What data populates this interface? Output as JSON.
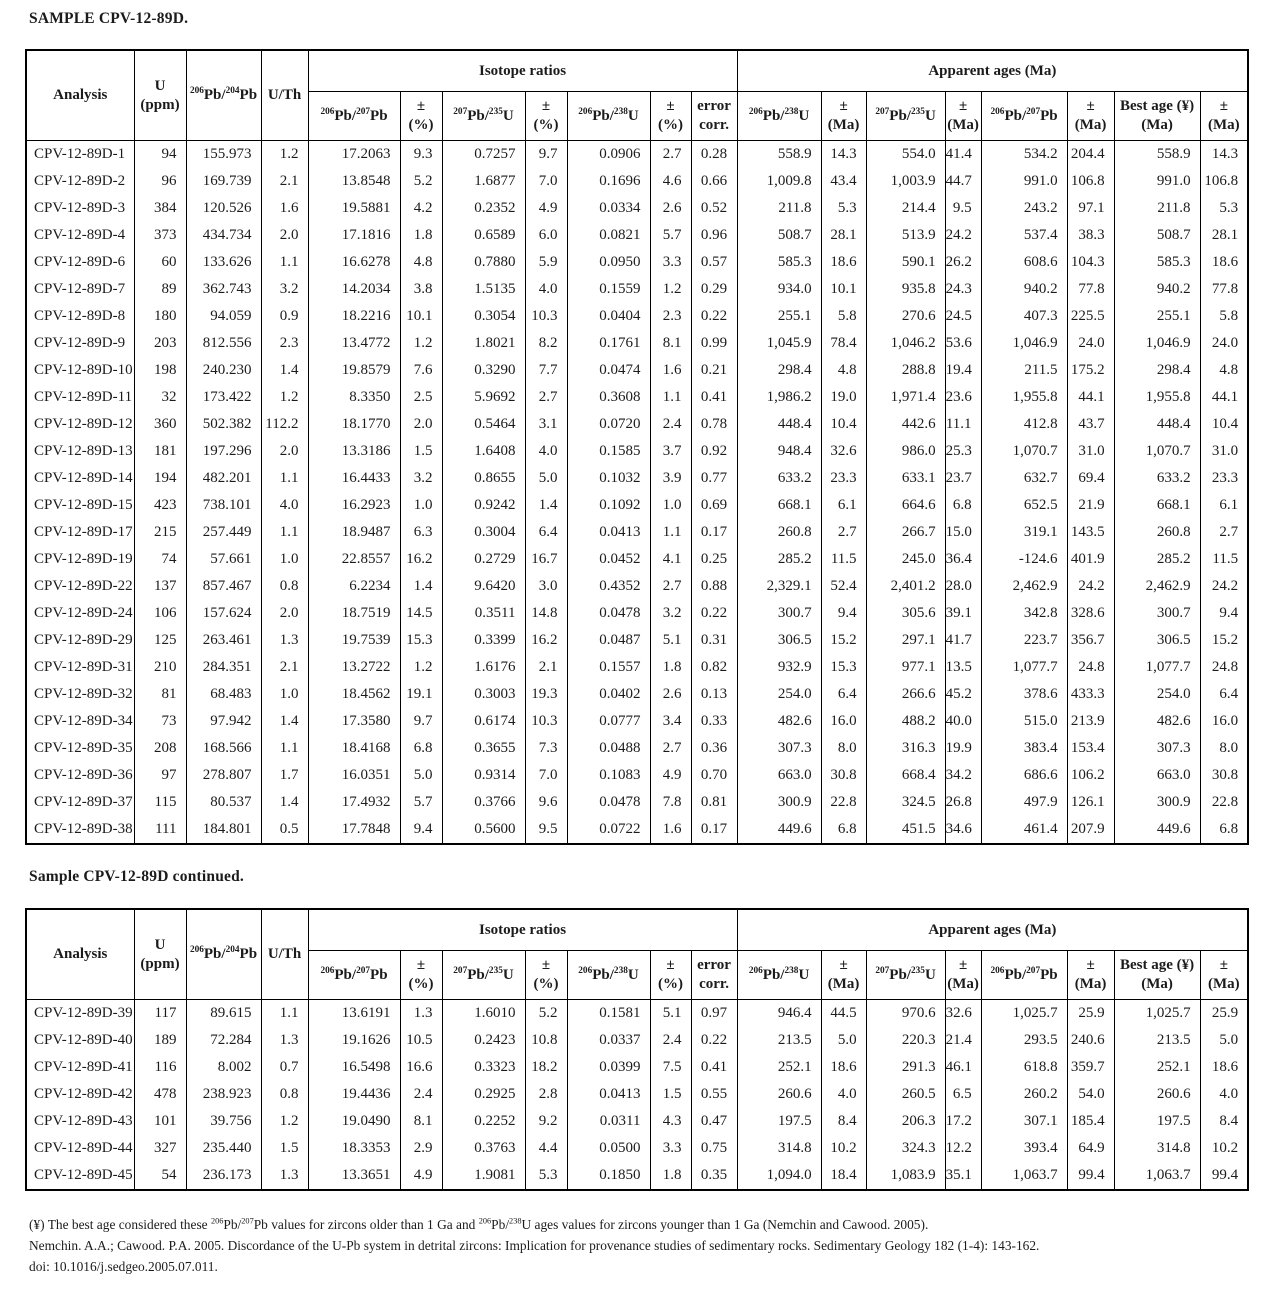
{
  "titles": {
    "sample": "SAMPLE CPV-12-89D.",
    "continued": "Sample CPV-12-89D continued."
  },
  "header": {
    "analysis": "Analysis",
    "u_line1": "U",
    "u_line2": "(ppm)",
    "pb204": "^206^Pb/^204^Pb",
    "uth": "U/Th",
    "isotope_group": "Isotope ratios",
    "ages_group": "Apparent ages (Ma)",
    "r_pb207": "^206^Pb/^207^Pb",
    "r_u235": "^207^Pb/^235^U",
    "r_u238": "^206^Pb/^238^U",
    "pm": "±",
    "pct": "(%)",
    "ma": "(Ma)",
    "err_line1": "error",
    "err_line2": "corr.",
    "a_u238": "^206^Pb/^238^U",
    "a_u235": "^207^Pb/^235^U",
    "a_pb207": "^206^Pb/^207^Pb",
    "best_line1": "Best age (¥)",
    "best_line2": "(Ma)"
  },
  "rows1": [
    [
      "CPV-12-89D-1",
      "94",
      "155.973",
      "1.2",
      "17.2063",
      "9.3",
      "0.7257",
      "9.7",
      "0.0906",
      "2.7",
      "0.28",
      "558.9",
      "14.3",
      "554.0",
      "41.4",
      "534.2",
      "204.4",
      "558.9",
      "14.3"
    ],
    [
      "CPV-12-89D-2",
      "96",
      "169.739",
      "2.1",
      "13.8548",
      "5.2",
      "1.6877",
      "7.0",
      "0.1696",
      "4.6",
      "0.66",
      "1,009.8",
      "43.4",
      "1,003.9",
      "44.7",
      "991.0",
      "106.8",
      "991.0",
      "106.8"
    ],
    [
      "CPV-12-89D-3",
      "384",
      "120.526",
      "1.6",
      "19.5881",
      "4.2",
      "0.2352",
      "4.9",
      "0.0334",
      "2.6",
      "0.52",
      "211.8",
      "5.3",
      "214.4",
      "9.5",
      "243.2",
      "97.1",
      "211.8",
      "5.3"
    ],
    [
      "CPV-12-89D-4",
      "373",
      "434.734",
      "2.0",
      "17.1816",
      "1.8",
      "0.6589",
      "6.0",
      "0.0821",
      "5.7",
      "0.96",
      "508.7",
      "28.1",
      "513.9",
      "24.2",
      "537.4",
      "38.3",
      "508.7",
      "28.1"
    ],
    [
      "CPV-12-89D-6",
      "60",
      "133.626",
      "1.1",
      "16.6278",
      "4.8",
      "0.7880",
      "5.9",
      "0.0950",
      "3.3",
      "0.57",
      "585.3",
      "18.6",
      "590.1",
      "26.2",
      "608.6",
      "104.3",
      "585.3",
      "18.6"
    ],
    [
      "CPV-12-89D-7",
      "89",
      "362.743",
      "3.2",
      "14.2034",
      "3.8",
      "1.5135",
      "4.0",
      "0.1559",
      "1.2",
      "0.29",
      "934.0",
      "10.1",
      "935.8",
      "24.3",
      "940.2",
      "77.8",
      "940.2",
      "77.8"
    ],
    [
      "CPV-12-89D-8",
      "180",
      "94.059",
      "0.9",
      "18.2216",
      "10.1",
      "0.3054",
      "10.3",
      "0.0404",
      "2.3",
      "0.22",
      "255.1",
      "5.8",
      "270.6",
      "24.5",
      "407.3",
      "225.5",
      "255.1",
      "5.8"
    ],
    [
      "CPV-12-89D-9",
      "203",
      "812.556",
      "2.3",
      "13.4772",
      "1.2",
      "1.8021",
      "8.2",
      "0.1761",
      "8.1",
      "0.99",
      "1,045.9",
      "78.4",
      "1,046.2",
      "53.6",
      "1,046.9",
      "24.0",
      "1,046.9",
      "24.0"
    ],
    [
      "CPV-12-89D-10",
      "198",
      "240.230",
      "1.4",
      "19.8579",
      "7.6",
      "0.3290",
      "7.7",
      "0.0474",
      "1.6",
      "0.21",
      "298.4",
      "4.8",
      "288.8",
      "19.4",
      "211.5",
      "175.2",
      "298.4",
      "4.8"
    ],
    [
      "CPV-12-89D-11",
      "32",
      "173.422",
      "1.2",
      "8.3350",
      "2.5",
      "5.9692",
      "2.7",
      "0.3608",
      "1.1",
      "0.41",
      "1,986.2",
      "19.0",
      "1,971.4",
      "23.6",
      "1,955.8",
      "44.1",
      "1,955.8",
      "44.1"
    ],
    [
      "CPV-12-89D-12",
      "360",
      "502.382",
      "112.2",
      "18.1770",
      "2.0",
      "0.5464",
      "3.1",
      "0.0720",
      "2.4",
      "0.78",
      "448.4",
      "10.4",
      "442.6",
      "11.1",
      "412.8",
      "43.7",
      "448.4",
      "10.4"
    ],
    [
      "CPV-12-89D-13",
      "181",
      "197.296",
      "2.0",
      "13.3186",
      "1.5",
      "1.6408",
      "4.0",
      "0.1585",
      "3.7",
      "0.92",
      "948.4",
      "32.6",
      "986.0",
      "25.3",
      "1,070.7",
      "31.0",
      "1,070.7",
      "31.0"
    ],
    [
      "CPV-12-89D-14",
      "194",
      "482.201",
      "1.1",
      "16.4433",
      "3.2",
      "0.8655",
      "5.0",
      "0.1032",
      "3.9",
      "0.77",
      "633.2",
      "23.3",
      "633.1",
      "23.7",
      "632.7",
      "69.4",
      "633.2",
      "23.3"
    ],
    [
      "CPV-12-89D-15",
      "423",
      "738.101",
      "4.0",
      "16.2923",
      "1.0",
      "0.9242",
      "1.4",
      "0.1092",
      "1.0",
      "0.69",
      "668.1",
      "6.1",
      "664.6",
      "6.8",
      "652.5",
      "21.9",
      "668.1",
      "6.1"
    ],
    [
      "CPV-12-89D-17",
      "215",
      "257.449",
      "1.1",
      "18.9487",
      "6.3",
      "0.3004",
      "6.4",
      "0.0413",
      "1.1",
      "0.17",
      "260.8",
      "2.7",
      "266.7",
      "15.0",
      "319.1",
      "143.5",
      "260.8",
      "2.7"
    ],
    [
      "CPV-12-89D-19",
      "74",
      "57.661",
      "1.0",
      "22.8557",
      "16.2",
      "0.2729",
      "16.7",
      "0.0452",
      "4.1",
      "0.25",
      "285.2",
      "11.5",
      "245.0",
      "36.4",
      "-124.6",
      "401.9",
      "285.2",
      "11.5"
    ],
    [
      "CPV-12-89D-22",
      "137",
      "857.467",
      "0.8",
      "6.2234",
      "1.4",
      "9.6420",
      "3.0",
      "0.4352",
      "2.7",
      "0.88",
      "2,329.1",
      "52.4",
      "2,401.2",
      "28.0",
      "2,462.9",
      "24.2",
      "2,462.9",
      "24.2"
    ],
    [
      "CPV-12-89D-24",
      "106",
      "157.624",
      "2.0",
      "18.7519",
      "14.5",
      "0.3511",
      "14.8",
      "0.0478",
      "3.2",
      "0.22",
      "300.7",
      "9.4",
      "305.6",
      "39.1",
      "342.8",
      "328.6",
      "300.7",
      "9.4"
    ],
    [
      "CPV-12-89D-29",
      "125",
      "263.461",
      "1.3",
      "19.7539",
      "15.3",
      "0.3399",
      "16.2",
      "0.0487",
      "5.1",
      "0.31",
      "306.5",
      "15.2",
      "297.1",
      "41.7",
      "223.7",
      "356.7",
      "306.5",
      "15.2"
    ],
    [
      "CPV-12-89D-31",
      "210",
      "284.351",
      "2.1",
      "13.2722",
      "1.2",
      "1.6176",
      "2.1",
      "0.1557",
      "1.8",
      "0.82",
      "932.9",
      "15.3",
      "977.1",
      "13.5",
      "1,077.7",
      "24.8",
      "1,077.7",
      "24.8"
    ],
    [
      "CPV-12-89D-32",
      "81",
      "68.483",
      "1.0",
      "18.4562",
      "19.1",
      "0.3003",
      "19.3",
      "0.0402",
      "2.6",
      "0.13",
      "254.0",
      "6.4",
      "266.6",
      "45.2",
      "378.6",
      "433.3",
      "254.0",
      "6.4"
    ],
    [
      "CPV-12-89D-34",
      "73",
      "97.942",
      "1.4",
      "17.3580",
      "9.7",
      "0.6174",
      "10.3",
      "0.0777",
      "3.4",
      "0.33",
      "482.6",
      "16.0",
      "488.2",
      "40.0",
      "515.0",
      "213.9",
      "482.6",
      "16.0"
    ],
    [
      "CPV-12-89D-35",
      "208",
      "168.566",
      "1.1",
      "18.4168",
      "6.8",
      "0.3655",
      "7.3",
      "0.0488",
      "2.7",
      "0.36",
      "307.3",
      "8.0",
      "316.3",
      "19.9",
      "383.4",
      "153.4",
      "307.3",
      "8.0"
    ],
    [
      "CPV-12-89D-36",
      "97",
      "278.807",
      "1.7",
      "16.0351",
      "5.0",
      "0.9314",
      "7.0",
      "0.1083",
      "4.9",
      "0.70",
      "663.0",
      "30.8",
      "668.4",
      "34.2",
      "686.6",
      "106.2",
      "663.0",
      "30.8"
    ],
    [
      "CPV-12-89D-37",
      "115",
      "80.537",
      "1.4",
      "17.4932",
      "5.7",
      "0.3766",
      "9.6",
      "0.0478",
      "7.8",
      "0.81",
      "300.9",
      "22.8",
      "324.5",
      "26.8",
      "497.9",
      "126.1",
      "300.9",
      "22.8"
    ],
    [
      "CPV-12-89D-38",
      "111",
      "184.801",
      "0.5",
      "17.7848",
      "9.4",
      "0.5600",
      "9.5",
      "0.0722",
      "1.6",
      "0.17",
      "449.6",
      "6.8",
      "451.5",
      "34.6",
      "461.4",
      "207.9",
      "449.6",
      "6.8"
    ]
  ],
  "rows2": [
    [
      "CPV-12-89D-39",
      "117",
      "89.615",
      "1.1",
      "13.6191",
      "1.3",
      "1.6010",
      "5.2",
      "0.1581",
      "5.1",
      "0.97",
      "946.4",
      "44.5",
      "970.6",
      "32.6",
      "1,025.7",
      "25.9",
      "1,025.7",
      "25.9"
    ],
    [
      "CPV-12-89D-40",
      "189",
      "72.284",
      "1.3",
      "19.1626",
      "10.5",
      "0.2423",
      "10.8",
      "0.0337",
      "2.4",
      "0.22",
      "213.5",
      "5.0",
      "220.3",
      "21.4",
      "293.5",
      "240.6",
      "213.5",
      "5.0"
    ],
    [
      "CPV-12-89D-41",
      "116",
      "8.002",
      "0.7",
      "16.5498",
      "16.6",
      "0.3323",
      "18.2",
      "0.0399",
      "7.5",
      "0.41",
      "252.1",
      "18.6",
      "291.3",
      "46.1",
      "618.8",
      "359.7",
      "252.1",
      "18.6"
    ],
    [
      "CPV-12-89D-42",
      "478",
      "238.923",
      "0.8",
      "19.4436",
      "2.4",
      "0.2925",
      "2.8",
      "0.0413",
      "1.5",
      "0.55",
      "260.6",
      "4.0",
      "260.5",
      "6.5",
      "260.2",
      "54.0",
      "260.6",
      "4.0"
    ],
    [
      "CPV-12-89D-43",
      "101",
      "39.756",
      "1.2",
      "19.0490",
      "8.1",
      "0.2252",
      "9.2",
      "0.0311",
      "4.3",
      "0.47",
      "197.5",
      "8.4",
      "206.3",
      "17.2",
      "307.1",
      "185.4",
      "197.5",
      "8.4"
    ],
    [
      "CPV-12-89D-44",
      "327",
      "235.440",
      "1.5",
      "18.3353",
      "2.9",
      "0.3763",
      "4.4",
      "0.0500",
      "3.3",
      "0.75",
      "314.8",
      "10.2",
      "324.3",
      "12.2",
      "393.4",
      "64.9",
      "314.8",
      "10.2"
    ],
    [
      "CPV-12-89D-45",
      "54",
      "236.173",
      "1.3",
      "13.3651",
      "4.9",
      "1.9081",
      "5.3",
      "0.1850",
      "1.8",
      "0.35",
      "1,094.0",
      "18.4",
      "1,083.9",
      "35.1",
      "1,063.7",
      "99.4",
      "1,063.7",
      "99.4"
    ]
  ],
  "footnotes": {
    "best_age_note": "(¥) The best age considered these ^206^Pb/^207^Pb values for zircons older than 1 Ga and ^206^Pb/^238^U ages values for zircons younger than 1 Ga (Nemchin and Cawood. 2005).",
    "reference": "Nemchin. A.A.; Cawood. P.A. 2005. Discordance of the U-Pb system in detrital zircons: Implication for provenance studies of sedimentary rocks. Sedimentary Geology 182 (1-4): 143-162.",
    "doi": "doi: 10.1016/j.sedgeo.2005.07.011."
  }
}
